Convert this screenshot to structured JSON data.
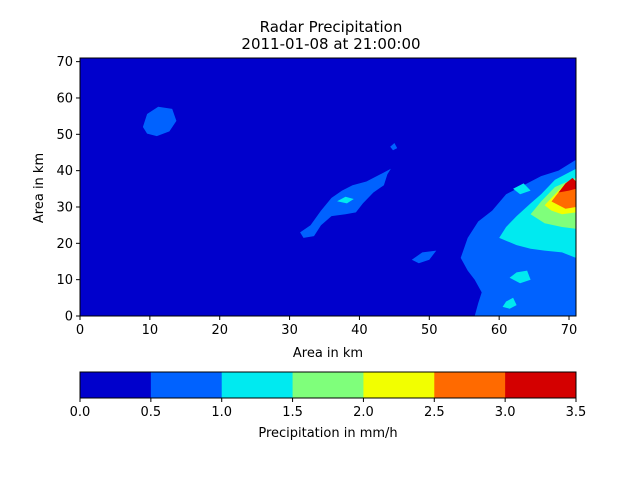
{
  "chart_data": {
    "type": "heatmap",
    "title": "Radar Precipitation",
    "subtitle": "2011-01-08 at 21:00:00",
    "xlabel": "Area in km",
    "ylabel": "Area in km",
    "xlim": [
      0,
      71
    ],
    "ylim": [
      0,
      71
    ],
    "x_ticks": [
      0,
      10,
      20,
      30,
      40,
      50,
      60,
      70
    ],
    "y_ticks": [
      0,
      10,
      20,
      30,
      40,
      50,
      60,
      70
    ],
    "grid": false,
    "colorbar": {
      "label": "Precipitation in mm/h",
      "levels": [
        0.0,
        0.5,
        1.0,
        1.5,
        2.0,
        2.5,
        3.0,
        3.5
      ],
      "tick_labels": [
        "0.0",
        "0.5",
        "1.0",
        "1.5",
        "2.0",
        "2.5",
        "3.0",
        "3.5"
      ],
      "colors": [
        "#0000cc",
        "#0062ff",
        "#00eaf0",
        "#7fff7b",
        "#f2ff00",
        "#ff6a00",
        "#d40000"
      ]
    },
    "regions": [
      {
        "level": 1,
        "points": [
          [
            0.0,
            0.0
          ],
          [
            71.0,
            0.0
          ],
          [
            71.0,
            71.0
          ],
          [
            0.0,
            71.0
          ]
        ]
      },
      {
        "level": 2,
        "points": [
          [
            9.0,
            52.0
          ],
          [
            9.6,
            55.6
          ],
          [
            11.2,
            57.6
          ],
          [
            13.2,
            57.0
          ],
          [
            13.8,
            53.7
          ],
          [
            12.8,
            50.8
          ],
          [
            11.0,
            49.5
          ],
          [
            9.6,
            50.2
          ]
        ]
      },
      {
        "level": 2,
        "points": [
          [
            44.4,
            46.6
          ],
          [
            45.0,
            47.6
          ],
          [
            45.4,
            46.2
          ],
          [
            44.8,
            45.6
          ]
        ]
      },
      {
        "level": 2,
        "points": [
          [
            33.0,
            25.0
          ],
          [
            34.5,
            29.0
          ],
          [
            36.0,
            32.5
          ],
          [
            37.5,
            34.5
          ],
          [
            39.0,
            36.0
          ],
          [
            41.0,
            37.0
          ],
          [
            43.0,
            39.0
          ],
          [
            44.5,
            40.5
          ],
          [
            44.0,
            39.0
          ],
          [
            43.5,
            36.0
          ],
          [
            42.0,
            34.0
          ],
          [
            40.5,
            31.0
          ],
          [
            39.5,
            28.5
          ],
          [
            38.0,
            28.0
          ],
          [
            36.0,
            27.5
          ],
          [
            34.5,
            25.0
          ],
          [
            33.5,
            22.0
          ],
          [
            32.0,
            21.5
          ],
          [
            31.5,
            23.0
          ]
        ]
      },
      {
        "level": 2,
        "points": [
          [
            47.5,
            15.5
          ],
          [
            49.0,
            17.5
          ],
          [
            51.0,
            18.0
          ],
          [
            50.0,
            15.5
          ],
          [
            48.5,
            14.5
          ]
        ]
      },
      {
        "level": 2,
        "points": [
          [
            54.5,
            16.0
          ],
          [
            55.5,
            21.5
          ],
          [
            57.0,
            26.0
          ],
          [
            59.0,
            29.0
          ],
          [
            61.0,
            33.5
          ],
          [
            63.5,
            36.0
          ],
          [
            66.0,
            38.5
          ],
          [
            68.5,
            40.0
          ],
          [
            71.0,
            43.0
          ],
          [
            71.0,
            0.0
          ],
          [
            56.5,
            0.0
          ],
          [
            57.0,
            3.5
          ],
          [
            57.5,
            6.5
          ],
          [
            56.5,
            10.0
          ],
          [
            55.5,
            12.5
          ]
        ]
      },
      {
        "level": 3,
        "points": [
          [
            60.0,
            21.5
          ],
          [
            61.0,
            24.5
          ],
          [
            62.5,
            27.5
          ],
          [
            64.5,
            31.0
          ],
          [
            66.0,
            33.5
          ],
          [
            68.0,
            37.5
          ],
          [
            71.0,
            40.5
          ],
          [
            71.0,
            16.0
          ],
          [
            69.0,
            17.5
          ],
          [
            66.5,
            18.0
          ],
          [
            64.5,
            18.5
          ],
          [
            62.5,
            19.5
          ]
        ]
      },
      {
        "level": 3,
        "points": [
          [
            62.0,
            35.0
          ],
          [
            63.5,
            36.5
          ],
          [
            64.5,
            34.5
          ],
          [
            63.0,
            33.5
          ]
        ]
      },
      {
        "level": 3,
        "points": [
          [
            61.5,
            10.5
          ],
          [
            62.5,
            12.0
          ],
          [
            64.0,
            12.5
          ],
          [
            64.5,
            10.0
          ],
          [
            63.0,
            9.0
          ]
        ]
      },
      {
        "level": 3,
        "points": [
          [
            60.5,
            2.5
          ],
          [
            61.0,
            4.0
          ],
          [
            62.0,
            5.0
          ],
          [
            62.5,
            3.0
          ],
          [
            61.5,
            2.0
          ]
        ]
      },
      {
        "level": 3,
        "points": [
          [
            36.8,
            31.6
          ],
          [
            38.0,
            32.8
          ],
          [
            39.2,
            32.2
          ],
          [
            38.2,
            31.0
          ]
        ]
      },
      {
        "level": 4,
        "points": [
          [
            64.5,
            28.0
          ],
          [
            66.0,
            31.5
          ],
          [
            68.0,
            35.5
          ],
          [
            71.0,
            38.0
          ],
          [
            71.0,
            24.0
          ],
          [
            69.0,
            24.5
          ],
          [
            66.5,
            25.5
          ]
        ]
      },
      {
        "level": 5,
        "points": [
          [
            66.5,
            30.5
          ],
          [
            68.0,
            33.5
          ],
          [
            69.5,
            36.5
          ],
          [
            71.0,
            36.5
          ],
          [
            71.0,
            28.5
          ],
          [
            69.0,
            28.0
          ],
          [
            67.5,
            29.0
          ]
        ]
      },
      {
        "level": 6,
        "points": [
          [
            67.5,
            31.5
          ],
          [
            68.5,
            34.0
          ],
          [
            70.0,
            36.5
          ],
          [
            71.0,
            36.0
          ],
          [
            71.0,
            30.0
          ],
          [
            69.5,
            29.5
          ]
        ]
      },
      {
        "level": 7,
        "points": [
          [
            68.5,
            34.0
          ],
          [
            69.5,
            36.5
          ],
          [
            70.5,
            38.0
          ],
          [
            71.0,
            37.0
          ],
          [
            71.0,
            35.0
          ],
          [
            70.0,
            34.5
          ]
        ]
      }
    ]
  }
}
